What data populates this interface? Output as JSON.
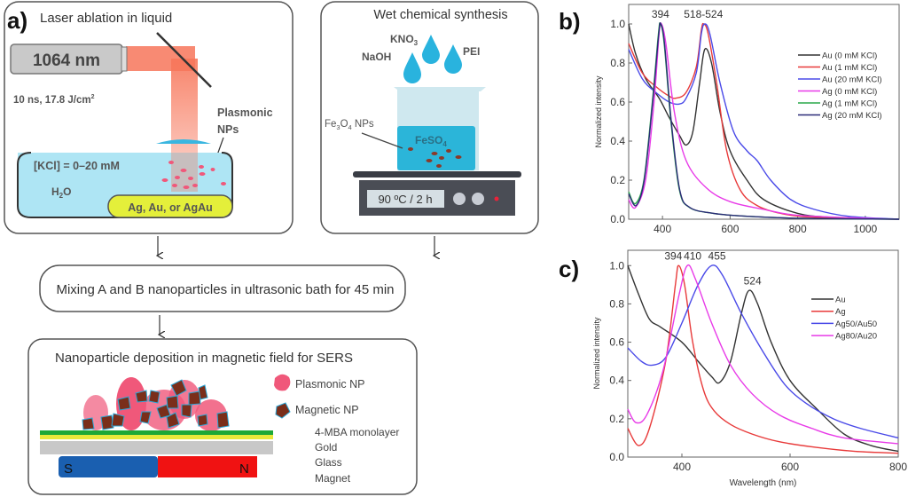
{
  "panel_a": {
    "label": "a)",
    "laser": {
      "title": "Laser ablation in liquid",
      "wavelength": "1064 nm",
      "params_main": "10 ns, 17.8 J/cm",
      "params_sup": "2",
      "np_label_1": "Plasmonic",
      "np_label_2": "NPs",
      "kcl": "[KCl] = 0–20 mM",
      "h2o_main": "H",
      "h2o_sub": "2",
      "h2o_end": "O",
      "target": "Ag, Au, or AgAu"
    },
    "wet": {
      "title": "Wet chemical synthesis",
      "kno3_main": "KNO",
      "kno3_sub": "3",
      "naoh": "NaOH",
      "pei": "PEI",
      "fe3o4_a": "Fe",
      "fe3o4_s1": "3",
      "fe3o4_b": "O",
      "fe3o4_s2": "4",
      "fe3o4_c": " NPs",
      "feso4_main": "FeSO",
      "feso4_sub": "4",
      "display": "90 ºC / 2 h"
    },
    "mixing": "Mixing A and B nanoparticles in ultrasonic bath for 45 min",
    "deposition": {
      "title": "Nanoparticle deposition in magnetic field for SERS",
      "legend_plasmonic": "Plasmonic NP",
      "legend_magnetic": "Magnetic NP",
      "layers": [
        "4-MBA monolayer",
        "Gold",
        "Glass",
        "Magnet"
      ],
      "magnet_s": "S",
      "magnet_n": "N"
    },
    "colors": {
      "beam": "#f7765a",
      "water": "#aee5f4",
      "plasmonic": "#f0587a",
      "magnetic": "#7a2e1a",
      "monolayer": "#1da836",
      "gold": "#e8e83a",
      "glass": "#c8c8c8",
      "magnet_s": "#1a5fb0",
      "magnet_n": "#f01212"
    }
  },
  "chart_data": [
    {
      "label": "b)",
      "type": "line",
      "xlabel": "",
      "ylabel": "Normalized intensity",
      "xlim": [
        300,
        1100
      ],
      "ylim": [
        0,
        1.1
      ],
      "xticks": [
        400,
        600,
        800,
        1000
      ],
      "yticks": [
        0.0,
        0.2,
        0.4,
        0.6,
        0.8,
        1.0
      ],
      "grid": false,
      "legend_position": "right",
      "annotations": [
        {
          "text": "394",
          "x": 394,
          "y": 1.0
        },
        {
          "text": "518-524",
          "x": 521,
          "y": 1.0
        }
      ],
      "series": [
        {
          "name": "Au (0 mM KCl)",
          "color": "#333333",
          "x": [
            300,
            320,
            350,
            390,
            420,
            450,
            470,
            490,
            510,
            525,
            545,
            570,
            600,
            650,
            700,
            800,
            900,
            1100
          ],
          "y": [
            1.0,
            0.85,
            0.72,
            0.62,
            0.52,
            0.43,
            0.38,
            0.45,
            0.7,
            0.87,
            0.8,
            0.55,
            0.35,
            0.2,
            0.1,
            0.03,
            0.01,
            0.0
          ]
        },
        {
          "name": "Au (1 mM KCl)",
          "color": "#e83a3a",
          "x": [
            300,
            340,
            380,
            420,
            440,
            470,
            500,
            515,
            522,
            535,
            560,
            590,
            630,
            680,
            750,
            850,
            1100
          ],
          "y": [
            0.9,
            0.75,
            0.68,
            0.63,
            0.62,
            0.65,
            0.78,
            0.97,
            1.0,
            0.95,
            0.7,
            0.35,
            0.15,
            0.07,
            0.03,
            0.01,
            0.0
          ]
        },
        {
          "name": "Au (20 mM KCl)",
          "color": "#4a4ae8",
          "x": [
            300,
            340,
            380,
            420,
            450,
            470,
            500,
            515,
            525,
            540,
            570,
            610,
            650,
            680,
            720,
            780,
            850,
            950,
            1100
          ],
          "y": [
            0.87,
            0.72,
            0.65,
            0.6,
            0.59,
            0.62,
            0.75,
            0.95,
            1.0,
            0.95,
            0.7,
            0.45,
            0.35,
            0.3,
            0.2,
            0.1,
            0.05,
            0.015,
            0.0
          ]
        },
        {
          "name": "Ag (0 mM KCl)",
          "color": "#e83ae8",
          "x": [
            300,
            320,
            350,
            375,
            390,
            397,
            410,
            435,
            470,
            530,
            600,
            700,
            800,
            1000,
            1100
          ],
          "y": [
            0.1,
            0.06,
            0.2,
            0.6,
            0.95,
            1.0,
            0.9,
            0.55,
            0.3,
            0.16,
            0.09,
            0.05,
            0.02,
            0.005,
            0.0
          ]
        },
        {
          "name": "Ag (1 mM KCl)",
          "color": "#2aa84a",
          "x": [
            300,
            320,
            345,
            370,
            388,
            394,
            405,
            425,
            450,
            480,
            550,
            650,
            800,
            1100
          ],
          "y": [
            0.14,
            0.08,
            0.2,
            0.6,
            0.95,
            1.0,
            0.9,
            0.5,
            0.15,
            0.06,
            0.03,
            0.015,
            0.005,
            0.0
          ]
        },
        {
          "name": "Ag (20 mM KCl)",
          "color": "#2a2a78",
          "x": [
            300,
            322,
            346,
            371,
            389,
            395,
            406,
            426,
            451,
            481,
            551,
            651,
            801,
            1100
          ],
          "y": [
            0.13,
            0.07,
            0.2,
            0.6,
            0.95,
            1.0,
            0.9,
            0.5,
            0.15,
            0.06,
            0.03,
            0.015,
            0.005,
            0.0
          ]
        }
      ]
    },
    {
      "label": "c)",
      "type": "line",
      "xlabel": "Wavelength (nm)",
      "ylabel": "Normalized intensity",
      "xlim": [
        300,
        800
      ],
      "ylim": [
        0,
        1.08
      ],
      "xticks": [
        400,
        600,
        800
      ],
      "yticks": [
        0.0,
        0.2,
        0.4,
        0.6,
        0.8,
        1.0
      ],
      "grid": false,
      "legend_position": "right",
      "annotations": [
        {
          "text": "394",
          "x": 394,
          "y": 1.0
        },
        {
          "text": "410",
          "x": 410,
          "y": 1.0
        },
        {
          "text": "455",
          "x": 455,
          "y": 1.0
        },
        {
          "text": "524",
          "x": 524,
          "y": 0.87
        }
      ],
      "series": [
        {
          "name": "Au",
          "color": "#333333",
          "x": [
            300,
            320,
            340,
            360,
            400,
            430,
            455,
            470,
            490,
            510,
            524,
            540,
            565,
            600,
            650,
            700,
            750,
            800
          ],
          "y": [
            1.0,
            0.85,
            0.72,
            0.68,
            0.6,
            0.5,
            0.42,
            0.39,
            0.5,
            0.75,
            0.87,
            0.8,
            0.6,
            0.4,
            0.25,
            0.12,
            0.06,
            0.03
          ]
        },
        {
          "name": "Ag",
          "color": "#e83a3a",
          "x": [
            300,
            320,
            340,
            370,
            388,
            394,
            405,
            420,
            440,
            460,
            490,
            530,
            580,
            650,
            720,
            800
          ],
          "y": [
            0.15,
            0.06,
            0.15,
            0.5,
            0.9,
            1.0,
            0.9,
            0.6,
            0.35,
            0.24,
            0.17,
            0.12,
            0.08,
            0.05,
            0.03,
            0.02
          ]
        },
        {
          "name": "Ag50/Au50",
          "color": "#4a4ae8",
          "x": [
            300,
            325,
            345,
            370,
            400,
            430,
            455,
            475,
            510,
            550,
            590,
            630,
            680,
            730,
            800
          ],
          "y": [
            0.57,
            0.5,
            0.48,
            0.52,
            0.7,
            0.9,
            1.0,
            0.95,
            0.75,
            0.55,
            0.38,
            0.28,
            0.2,
            0.15,
            0.1
          ]
        },
        {
          "name": "Ag80/Au20",
          "color": "#e83ae8",
          "x": [
            300,
            315,
            335,
            365,
            395,
            410,
            425,
            455,
            490,
            530,
            580,
            640,
            700,
            800
          ],
          "y": [
            0.25,
            0.18,
            0.22,
            0.45,
            0.85,
            1.0,
            0.93,
            0.7,
            0.48,
            0.33,
            0.22,
            0.15,
            0.1,
            0.07
          ]
        }
      ]
    }
  ]
}
